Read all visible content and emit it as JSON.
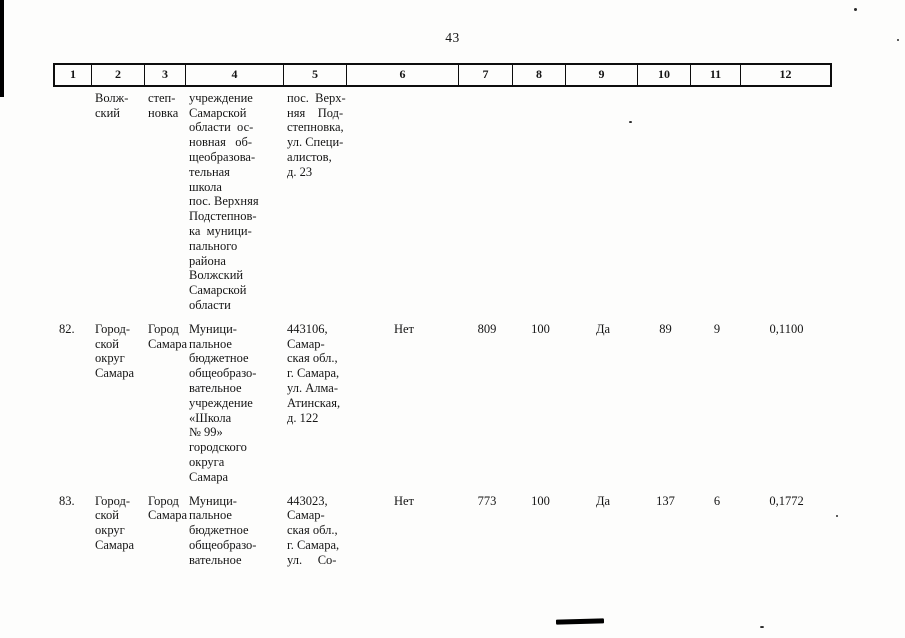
{
  "page": {
    "number": "43"
  },
  "table": {
    "header": [
      "1",
      "2",
      "3",
      "4",
      "5",
      "6",
      "7",
      "8",
      "9",
      "10",
      "11",
      "12"
    ],
    "rows": [
      {
        "cells": [
          "",
          "Волж-\nский",
          "степ-\nновка",
          "учреждение\nСамарской\nобласти  ос-\nновная   об-\nщеобразова-\nтельная\nшкола\nпос. Верхняя\nПодстепнов-\nка  муници-\nпального\nрайона\nВолжский\nСамарской\nобласти",
          "пос.  Верх-\nняя    Под-\nстепновка,\nул. Специ-\nалистов,\nд. 23",
          "",
          "",
          "",
          "",
          "",
          "",
          ""
        ]
      },
      {
        "cells": [
          "82.",
          "Город-\nской\nокруг\nСамара",
          "Город\nСамара",
          "Муници-\nпальное\nбюджетное\nобщеобразо-\nвательное\nучреждение\n«Школа\n№ 99»\nгородского\nокруга\nСамара",
          "443106,\nСамар-\nская обл.,\nг. Самара,\nул. Алма-\nАтинская,\nд. 122",
          "Нет",
          "809",
          "100",
          "Да",
          "89",
          "9",
          "0,1100"
        ]
      },
      {
        "cells": [
          "83.",
          "Город-\nской\nокруг\nСамара",
          "Город\nСамара",
          "Муници-\nпальное\nбюджетное\nобщеобразо-\nвательное",
          "443023,\nСамар-\nская обл.,\nг. Самара,\nул.     Со-",
          "Нет",
          "773",
          "100",
          "Да",
          "137",
          "6",
          "0,1772"
        ]
      }
    ]
  }
}
